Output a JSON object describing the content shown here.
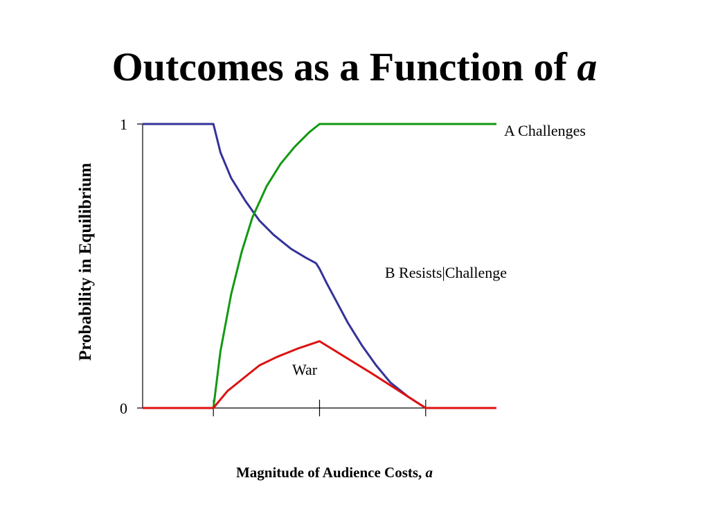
{
  "slide": {
    "title_text": "Outcomes as a Function of",
    "title_variable": "a"
  },
  "chart_data": {
    "type": "line",
    "ylabel": "Probability in Equilibrium",
    "xlabel_text": "Magnitude of Audience Costs,",
    "xlabel_variable": "a",
    "xlim": [
      0,
      100
    ],
    "ylim": [
      0,
      1
    ],
    "y_ticks": [
      {
        "value": 0,
        "label": "0"
      },
      {
        "value": 1,
        "label": "1"
      }
    ],
    "x_ticks": [
      20,
      50,
      80
    ],
    "grid": false,
    "legend": "none",
    "series": [
      {
        "name": "A Challenges",
        "color": "#119911",
        "points": [
          [
            0,
            0
          ],
          [
            20,
            0
          ],
          [
            22,
            0.2
          ],
          [
            25,
            0.4
          ],
          [
            28,
            0.55
          ],
          [
            31,
            0.67
          ],
          [
            35,
            0.78
          ],
          [
            39,
            0.86
          ],
          [
            43,
            0.92
          ],
          [
            47,
            0.97
          ],
          [
            50,
            1
          ],
          [
            100,
            1
          ]
        ]
      },
      {
        "name": "B Resists|Challenge",
        "color": "#333399",
        "points": [
          [
            0,
            1
          ],
          [
            20,
            1
          ],
          [
            22,
            0.9
          ],
          [
            25,
            0.81
          ],
          [
            29,
            0.73
          ],
          [
            33,
            0.66
          ],
          [
            37,
            0.61
          ],
          [
            42,
            0.56
          ],
          [
            46,
            0.53
          ],
          [
            49,
            0.51
          ],
          [
            50,
            0.49
          ],
          [
            52,
            0.44
          ],
          [
            55,
            0.37
          ],
          [
            58,
            0.3
          ],
          [
            62,
            0.22
          ],
          [
            66,
            0.15
          ],
          [
            70,
            0.09
          ],
          [
            75,
            0.04
          ],
          [
            80,
            0
          ],
          [
            100,
            0
          ]
        ]
      },
      {
        "name": "War",
        "color": "#dd1111",
        "points": [
          [
            0,
            0
          ],
          [
            20,
            0
          ],
          [
            24,
            0.06
          ],
          [
            28,
            0.1
          ],
          [
            33,
            0.15
          ],
          [
            38,
            0.18
          ],
          [
            44,
            0.21
          ],
          [
            50,
            0.235
          ],
          [
            65,
            0.12
          ],
          [
            80,
            0
          ],
          [
            100,
            0
          ]
        ]
      }
    ]
  }
}
